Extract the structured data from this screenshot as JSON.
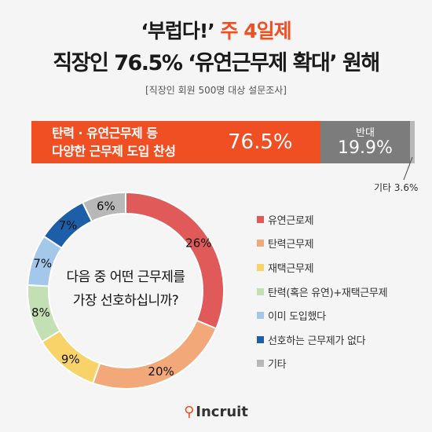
{
  "header": {
    "title_quote": "‘부럽다!’",
    "title_highlight": "주 4일제",
    "title2": "직장인 76.5% ‘유연근무제 확대’ 원해",
    "subtitle": "[직장인 회원 500명 대상 설문조사]"
  },
  "summary_bar": {
    "segments": [
      {
        "label_line1": "탄력 · 유연근무제 등",
        "label_line2": "다양한 근무제 도입 찬성",
        "value": 76.5,
        "value_label": "76.5%",
        "color": "#f04e23"
      },
      {
        "label": "반대",
        "value": 19.9,
        "value_label": "19.9%",
        "color": "#7c7c7c"
      },
      {
        "label": "기타 3.6%",
        "value": 3.6,
        "color": "#b8b8b8"
      }
    ]
  },
  "chart_data": {
    "type": "pie",
    "donut": true,
    "center_text_line1": "다음 중 어떤 근무제를",
    "center_text_line2": "가장 선호하십니까?",
    "slices": [
      {
        "label": "유연근로제",
        "value": 26,
        "value_label": "26%",
        "color": "#e05a5a"
      },
      {
        "label": "탄력근무제",
        "value": 20,
        "value_label": "20%",
        "color": "#f2a878"
      },
      {
        "label": "재택근무제",
        "value": 9,
        "value_label": "9%",
        "color": "#f8d36a"
      },
      {
        "label": "탄력(혹은 유연)+재택근무제",
        "value": 8,
        "value_label": "8%",
        "color": "#c3e0b4"
      },
      {
        "label": "이미 도입했다",
        "value": 7,
        "value_label": "7%",
        "color": "#a4c8ea"
      },
      {
        "label": "선호하는 근무제가 없다",
        "value": 7,
        "value_label": "7%",
        "color": "#1d5ea8"
      },
      {
        "label": "기타",
        "value": 6,
        "value_label": "6%",
        "color": "#b8b8b8"
      }
    ],
    "legend_position": "right"
  },
  "footer": {
    "logo_text": "Incruit",
    "logo_icon": "incruit-logo-icon"
  }
}
